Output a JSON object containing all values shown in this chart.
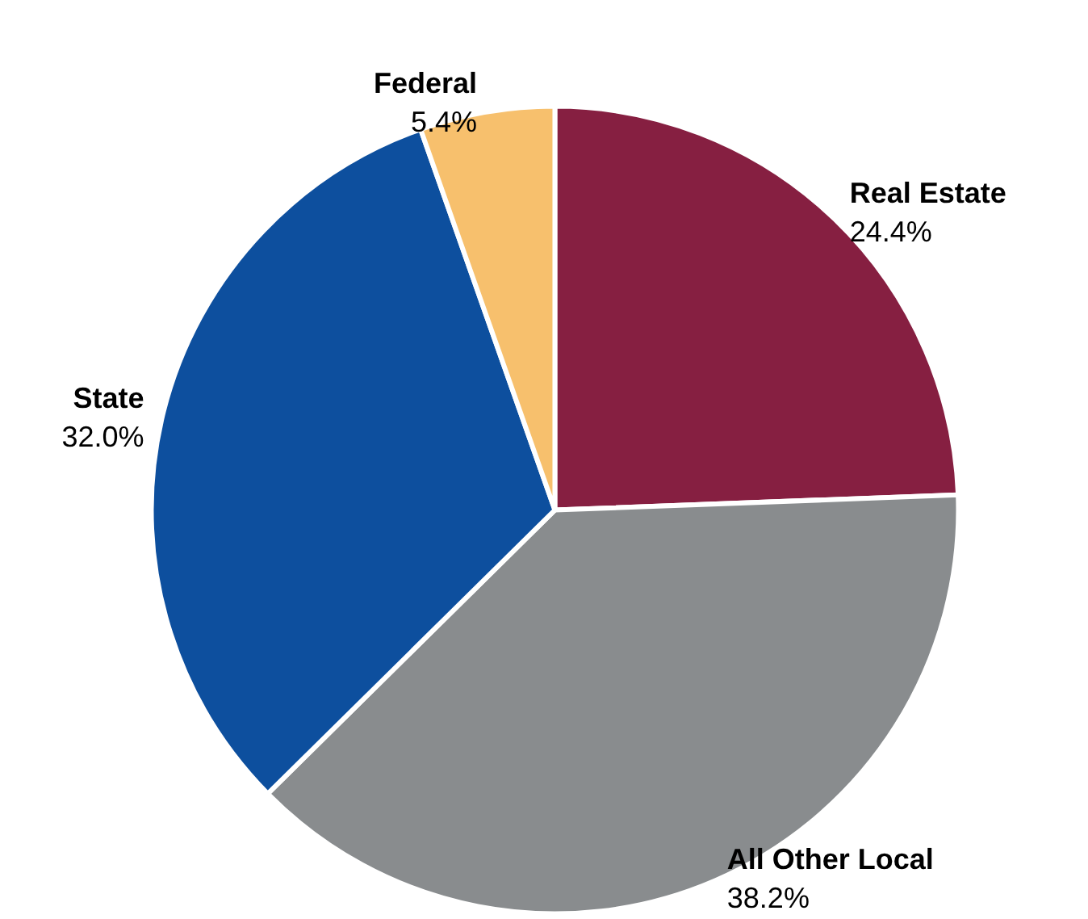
{
  "chart_data": {
    "type": "pie",
    "categories": [
      "Real Estate",
      "All Other Local",
      "State",
      "Federal"
    ],
    "values": [
      24.4,
      38.2,
      32.0,
      5.4
    ],
    "value_labels": [
      "24.4%",
      "38.2%",
      "32.0%",
      "5.4%"
    ],
    "colors": [
      "#861f41",
      "#898c8e",
      "#0d4f9e",
      "#f7c06d"
    ],
    "legend": false
  }
}
